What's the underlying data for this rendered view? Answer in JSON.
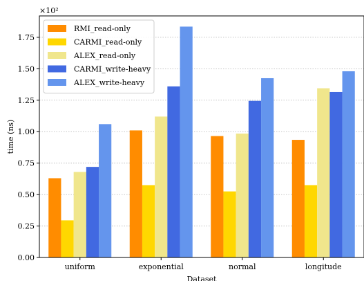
{
  "chart_data": {
    "type": "bar",
    "exponent_label": "×10²",
    "xlabel": "Dataset",
    "ylabel": "time (ns)",
    "categories": [
      "uniform",
      "exponential",
      "normal",
      "longitude"
    ],
    "ylim": [
      0,
      1.92
    ],
    "yticks": [
      "0.00",
      "0.25",
      "0.50",
      "0.75",
      "1.00",
      "1.25",
      "1.50",
      "1.75"
    ],
    "grid": "horizontal-dotted",
    "legend_position": "top-left",
    "series": [
      {
        "name": "RMI_read-only",
        "color": "#ff8c00",
        "values": [
          0.63,
          1.01,
          0.965,
          0.935
        ]
      },
      {
        "name": "CARMI_read-only",
        "color": "#ffd700",
        "values": [
          0.295,
          0.575,
          0.525,
          0.575
        ]
      },
      {
        "name": "ALEX_read-only",
        "color": "#f0e68c",
        "values": [
          0.68,
          1.12,
          0.985,
          1.345
        ]
      },
      {
        "name": "CARMI_write-heavy",
        "color": "#4169e1",
        "values": [
          0.72,
          1.36,
          1.245,
          1.315
        ]
      },
      {
        "name": "ALEX_write-heavy",
        "color": "#6495ed",
        "values": [
          1.06,
          1.835,
          1.425,
          1.48
        ]
      }
    ]
  }
}
